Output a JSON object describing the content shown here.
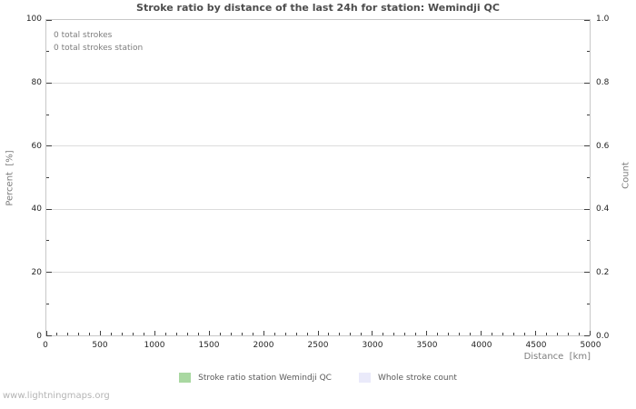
{
  "title": "Stroke ratio by distance of the last 24h for station: Wemindji QC",
  "watermark": "www.lightningmaps.org",
  "annotations": {
    "line1": "0 total strokes",
    "line2": "0 total strokes station"
  },
  "axes": {
    "y_left_label": "Percent  [%]",
    "y_right_label": "Count",
    "x_label": "Distance  [km]"
  },
  "legend": [
    {
      "label": "Stroke ratio station Wemindji QC",
      "color": "#a9d8a1"
    },
    {
      "label": "Whole stroke count",
      "color": "#eaeafa"
    }
  ],
  "colors": {
    "plot_border": "#c8c8c8",
    "gridline": "#dcdcdc",
    "tick_mark": "#404040",
    "tick_label": "#262626",
    "title_text": "#4d4d4d",
    "muted_text": "#7d7d7d",
    "legend_text": "#595959",
    "watermark_text": "#b4b4b4"
  },
  "chart_data": {
    "type": "bar",
    "title": "Stroke ratio by distance of the last 24h for station: Wemindji QC",
    "xlabel": "Distance  [km]",
    "ylabel_left": "Percent  [%]",
    "ylabel_right": "Count",
    "xlim": [
      0,
      5000
    ],
    "ylim_left": [
      0,
      100
    ],
    "ylim_right": [
      0.0,
      1.0
    ],
    "x_ticks": [
      "0",
      "500",
      "1000",
      "1500",
      "2000",
      "2500",
      "3000",
      "3500",
      "4000",
      "4500",
      "5000"
    ],
    "x_minor_step": 100,
    "y_left_ticks": [
      "0",
      "20",
      "40",
      "60",
      "80",
      "100"
    ],
    "y_left_minor_ticks": [
      10,
      30,
      50,
      70,
      90
    ],
    "y_right_ticks": [
      "0.0",
      "0.2",
      "0.4",
      "0.6",
      "0.8",
      "1.0"
    ],
    "grid": "horizontal-major-only",
    "legend_position": "bottom-center",
    "total_strokes": 0,
    "total_strokes_station": 0,
    "series": [
      {
        "name": "Stroke ratio station Wemindji QC",
        "color": "#a9d8a1",
        "x": [],
        "values": []
      },
      {
        "name": "Whole stroke count",
        "color": "#eaeafa",
        "x": [],
        "values": []
      }
    ]
  }
}
